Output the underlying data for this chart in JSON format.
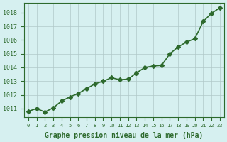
{
  "x": [
    0,
    1,
    2,
    3,
    4,
    5,
    6,
    7,
    8,
    9,
    10,
    11,
    12,
    13,
    14,
    15,
    16,
    17,
    18,
    19,
    20,
    21,
    22,
    23
  ],
  "y": [
    1010.8,
    1011.0,
    1010.75,
    1011.05,
    1011.55,
    1011.85,
    1012.1,
    1012.45,
    1012.8,
    1013.0,
    1013.25,
    1013.1,
    1013.15,
    1013.6,
    1014.0,
    1014.1,
    1014.15,
    1015.0,
    1015.5,
    1015.85,
    1016.1,
    1017.35,
    1017.95,
    1018.35
  ],
  "line_color": "#2d6a2d",
  "marker": "D",
  "marker_size": 3,
  "bg_color": "#d6f0f0",
  "grid_color": "#b0c8c8",
  "ylabel_ticks": [
    1011,
    1012,
    1013,
    1014,
    1015,
    1016,
    1017,
    1018
  ],
  "ylim": [
    1010.4,
    1018.7
  ],
  "xlim": [
    -0.5,
    23.5
  ],
  "xlabel": "Graphe pression niveau de la mer (hPa)",
  "xlabel_fontsize": 7,
  "tick_fontsize": 6,
  "line_width": 1.2
}
